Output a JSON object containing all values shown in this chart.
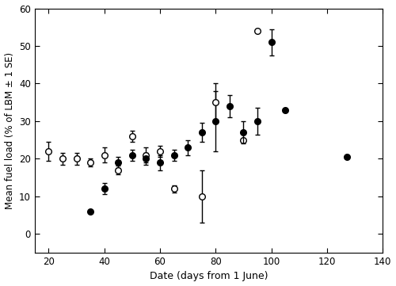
{
  "adult_data": [
    [
      20,
      22,
      2.5,
      2.5
    ],
    [
      25,
      20,
      1.5,
      1.5
    ],
    [
      30,
      20,
      1.5,
      1.5
    ],
    [
      35,
      19,
      1.0,
      1.0
    ],
    [
      40,
      21,
      2.0,
      2.0
    ],
    [
      45,
      17,
      1.2,
      1.2
    ],
    [
      50,
      26,
      1.5,
      1.5
    ],
    [
      55,
      21,
      2.0,
      2.0
    ],
    [
      60,
      22,
      1.5,
      1.5
    ],
    [
      65,
      12,
      1.0,
      1.0
    ],
    [
      75,
      10,
      7.0,
      7.0
    ],
    [
      80,
      35,
      5.0,
      5.0
    ],
    [
      90,
      25,
      null,
      null
    ],
    [
      95,
      54,
      null,
      null
    ]
  ],
  "juvenile_data": [
    [
      35,
      6,
      null,
      null
    ],
    [
      40,
      12,
      1.5,
      1.5
    ],
    [
      45,
      19,
      1.5,
      1.5
    ],
    [
      50,
      21,
      1.5,
      1.5
    ],
    [
      55,
      20,
      1.5,
      1.5
    ],
    [
      60,
      19,
      2.0,
      2.0
    ],
    [
      65,
      21,
      1.5,
      1.5
    ],
    [
      70,
      23,
      2.0,
      2.0
    ],
    [
      75,
      27,
      2.5,
      2.5
    ],
    [
      80,
      30,
      8.0,
      8.0
    ],
    [
      85,
      34,
      3.0,
      3.0
    ],
    [
      90,
      27,
      3.0,
      3.0
    ],
    [
      95,
      30,
      3.5,
      3.5
    ],
    [
      100,
      51,
      3.5,
      3.5
    ],
    [
      105,
      33,
      null,
      null
    ],
    [
      127,
      20.5,
      null,
      null
    ]
  ],
  "xlim": [
    15,
    140
  ],
  "ylim": [
    -5,
    60
  ],
  "xticks": [
    20,
    40,
    60,
    80,
    100,
    120,
    140
  ],
  "yticks": [
    0,
    10,
    20,
    30,
    40,
    50,
    60
  ],
  "xlabel": "Date (days from 1 June)",
  "ylabel": "Mean fuel load (% of LBM ± 1 SE)",
  "figsize": [
    5.0,
    3.61
  ],
  "dpi": 100,
  "markersize": 5.5,
  "capsize": 2.5,
  "elinewidth": 1.0,
  "markeredgewidth": 1.0,
  "linewidth": 1.0
}
